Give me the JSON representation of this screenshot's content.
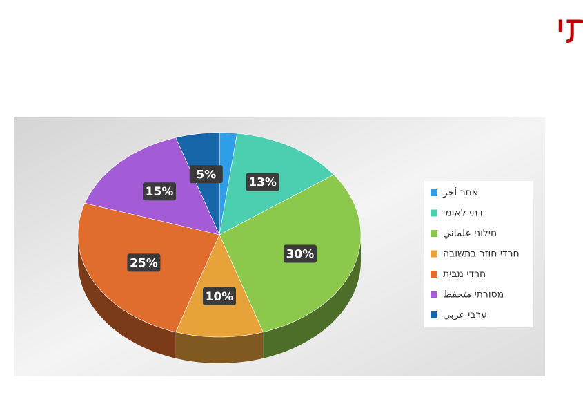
{
  "chart_data": {
    "type": "pie3d",
    "title": "פילוח על פי מגזר משפחתי",
    "categories": [
      "אחר أخر",
      "דתי לאומי",
      "חילוני علماني",
      "חרדי חוזר בתשובה",
      "חרדי מבית",
      "מסורתי متحفظ",
      "ערבי عربي"
    ],
    "values": [
      2,
      13,
      30,
      10,
      25,
      15,
      5
    ],
    "value_labels": [
      null,
      "13%",
      "30%",
      "10%",
      "25%",
      "15%",
      "5%"
    ],
    "colors": [
      "#2e9ee8",
      "#4bcfb0",
      "#8cc84b",
      "#e8a23a",
      "#e06c2e",
      "#a35bd6",
      "#1565a8"
    ]
  }
}
